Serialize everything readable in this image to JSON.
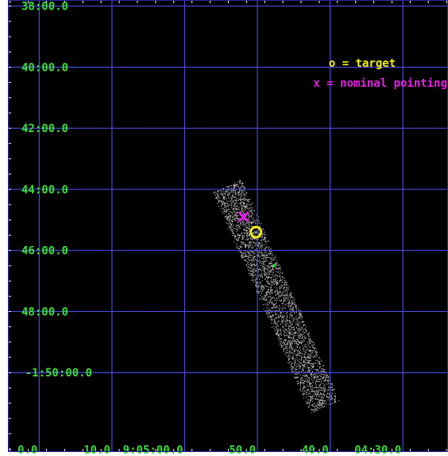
{
  "chart_data": {
    "type": "scatter",
    "colors": {
      "background": "#000000",
      "grid": "#4a4ae6",
      "labels": "#3ddc3d",
      "events": "#d8d8d8",
      "target": "#f2f20a",
      "pointing": "#e61ee6",
      "source": "#27e027"
    },
    "dec_labels": [
      {
        "text": "38:00.0",
        "dec_arcmin": -38
      },
      {
        "text": "40:00.0",
        "dec_arcmin": -40
      },
      {
        "text": "42:00.0",
        "dec_arcmin": -42
      },
      {
        "text": "44:00.0",
        "dec_arcmin": -44
      },
      {
        "text": "46:00.0",
        "dec_arcmin": -46
      },
      {
        "text": "48:00.0",
        "dec_arcmin": -48
      },
      {
        "text": "-1:50:00.0",
        "dec_arcmin": -50
      }
    ],
    "ra_labels": [
      {
        "text": "0.0",
        "ra_seconds": 20
      },
      {
        "text": "10.0",
        "ra_seconds": 10
      },
      {
        "text": "9:05:00.0",
        "ra_seconds": 0
      },
      {
        "text": "50.0",
        "ra_seconds": -10
      },
      {
        "text": "40.0",
        "ra_seconds": -20
      },
      {
        "text": "04:30.0",
        "ra_seconds": -30
      }
    ],
    "xlim": [
      24.3,
      -36.2
    ],
    "ylim": [
      -52.6,
      -37.8
    ],
    "legend": [
      {
        "symbol": "o",
        "label": "target",
        "text": "o = target",
        "color": "#f2f20a"
      },
      {
        "symbol": "x",
        "label": "nominal pointing",
        "text": "x = nominal pointing",
        "color": "#e61ee6"
      }
    ],
    "target": {
      "ra_seconds": -9.8,
      "dec_arcmin": -45.4
    },
    "nominal_pointing": {
      "ra_seconds": -8.1,
      "dec_arcmin": -44.9
    },
    "source": {
      "ra_seconds": -12.3,
      "dec_arcmin": -46.5
    },
    "event_strip": {
      "start": {
        "ra_seconds": -6.0,
        "dec_arcmin": -44.0
      },
      "end": {
        "ra_seconds": -19.0,
        "dec_arcmin": -51.0
      },
      "half_width_ra_seconds": 2.3
    }
  }
}
